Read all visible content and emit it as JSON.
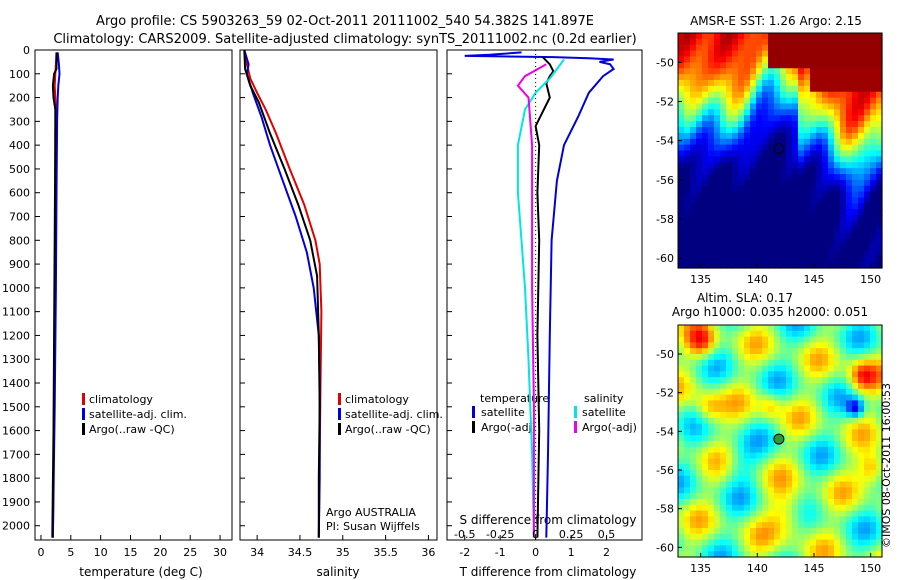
{
  "header": {
    "title_line1": "Argo profile: CS 5903263_59 02-Oct-2011 20111002_540 54.382S 141.897E",
    "title_line2": "Climatology: CARS2009. Satellite-adjusted climatology: synTS_20111002.nc (0.2d earlier)"
  },
  "colors": {
    "climatology": "#e00000",
    "satellite": "#0000dd",
    "argo": "#000000",
    "salinity_satellite": "#00e5e5",
    "salinity_argo": "#ee00ee"
  },
  "depth_axis": {
    "ticks": [
      0,
      100,
      200,
      300,
      400,
      500,
      600,
      700,
      800,
      900,
      1000,
      1100,
      1200,
      1300,
      1400,
      1500,
      1600,
      1700,
      1800,
      1900,
      2000
    ],
    "ylim": [
      0,
      2060
    ]
  },
  "chart_data": [
    {
      "type": "line",
      "xlabel": "temperature (deg C)",
      "xlim": [
        -1,
        32
      ],
      "xticks": [
        0,
        5,
        10,
        15,
        20,
        25,
        30
      ],
      "legend": [
        "climatology",
        "satellite-adj. clim.",
        "Argo(..raw -QC)"
      ],
      "series": [
        {
          "name": "climatology",
          "color": "climatology",
          "points": [
            [
              2.6,
              10
            ],
            [
              2.5,
              60
            ],
            [
              2.4,
              100
            ],
            [
              2.3,
              150
            ],
            [
              2.4,
              200
            ],
            [
              2.5,
              250
            ],
            [
              2.4,
              350
            ],
            [
              2.4,
              600
            ],
            [
              2.3,
              1000
            ],
            [
              2.2,
              1500
            ],
            [
              2.0,
              2050
            ]
          ]
        },
        {
          "name": "satellite-adj. clim.",
          "color": "satellite",
          "points": [
            [
              2.8,
              10
            ],
            [
              3.0,
              60
            ],
            [
              3.1,
              100
            ],
            [
              2.9,
              150
            ],
            [
              2.8,
              200
            ],
            [
              2.7,
              300
            ],
            [
              2.6,
              600
            ],
            [
              2.5,
              1000
            ],
            [
              2.3,
              1500
            ],
            [
              2.0,
              2050
            ]
          ]
        },
        {
          "name": "Argo(..raw -QC)",
          "color": "argo",
          "points": [
            [
              2.6,
              10
            ],
            [
              2.6,
              80
            ],
            [
              2.2,
              100
            ],
            [
              2.0,
              150
            ],
            [
              2.1,
              200
            ],
            [
              2.4,
              250
            ],
            [
              2.4,
              400
            ],
            [
              2.3,
              800
            ],
            [
              2.2,
              1200
            ],
            [
              2.1,
              1600
            ],
            [
              1.9,
              2050
            ]
          ]
        }
      ]
    },
    {
      "type": "line",
      "xlabel": "salinity",
      "xlim": [
        33.8,
        36.1
      ],
      "xticks": [
        34,
        34.5,
        35,
        35.5,
        36
      ],
      "xticklabels": [
        "34",
        "34.5",
        "35",
        "35.5",
        "36"
      ],
      "legend": [
        "climatology",
        "satellite-adj. clim.",
        "Argo(..raw -QC)"
      ],
      "annotations": [
        "Argo AUSTRALIA",
        "PI: Susan Wijffels"
      ],
      "series": [
        {
          "name": "climatology",
          "color": "climatology",
          "points": [
            [
              33.85,
              0
            ],
            [
              33.88,
              60
            ],
            [
              33.92,
              120
            ],
            [
              34.0,
              180
            ],
            [
              34.1,
              250
            ],
            [
              34.22,
              350
            ],
            [
              34.38,
              500
            ],
            [
              34.55,
              650
            ],
            [
              34.68,
              800
            ],
            [
              34.73,
              900
            ],
            [
              34.75,
              1100
            ],
            [
              34.74,
              1400
            ],
            [
              34.73,
              1700
            ],
            [
              34.72,
              2050
            ]
          ]
        },
        {
          "name": "satellite-adj. clim.",
          "color": "satellite",
          "points": [
            [
              33.85,
              0
            ],
            [
              33.9,
              60
            ],
            [
              33.88,
              100
            ],
            [
              33.95,
              180
            ],
            [
              34.05,
              280
            ],
            [
              34.15,
              400
            ],
            [
              34.3,
              550
            ],
            [
              34.45,
              700
            ],
            [
              34.58,
              850
            ],
            [
              34.66,
              1000
            ],
            [
              34.72,
              1200
            ],
            [
              34.73,
              1400
            ],
            [
              34.73,
              1800
            ],
            [
              34.72,
              2050
            ]
          ]
        },
        {
          "name": "Argo(..raw -QC)",
          "color": "argo",
          "points": [
            [
              33.85,
              0
            ],
            [
              33.86,
              80
            ],
            [
              33.92,
              150
            ],
            [
              34.02,
              220
            ],
            [
              34.15,
              350
            ],
            [
              34.32,
              500
            ],
            [
              34.48,
              650
            ],
            [
              34.62,
              800
            ],
            [
              34.7,
              950
            ],
            [
              34.72,
              1200
            ],
            [
              34.73,
              1500
            ],
            [
              34.72,
              1800
            ],
            [
              34.72,
              2050
            ]
          ]
        }
      ]
    },
    {
      "type": "line",
      "xlabel": "T difference from climatology",
      "x2label": "S difference from climatology",
      "xlim": [
        -2.5,
        3.0
      ],
      "xticks": [
        -2,
        -1,
        0,
        1,
        2
      ],
      "x2ticks": [
        -0.5,
        -0.25,
        0,
        0.25,
        0.5
      ],
      "x2ticklabels": [
        "-0.5",
        "-0.25",
        "0",
        "0.25",
        "0.5"
      ],
      "legend_temperature": {
        "title": "temperature",
        "items": [
          "satellite",
          "Argo(-adj)"
        ]
      },
      "legend_salinity": {
        "title": "salinity",
        "items": [
          "satellite",
          "Argo(-adj)"
        ]
      },
      "series": [
        {
          "name": "satellite",
          "group": "temperature",
          "color": "satellite",
          "points": [
            [
              -0.4,
              10
            ],
            [
              -1.3,
              20
            ],
            [
              -2.0,
              25
            ],
            [
              0.5,
              30
            ],
            [
              1.5,
              35
            ],
            [
              2.2,
              40
            ],
            [
              2.0,
              45
            ],
            [
              1.8,
              50
            ],
            [
              2.1,
              60
            ],
            [
              2.2,
              80
            ],
            [
              1.9,
              110
            ],
            [
              1.5,
              180
            ],
            [
              1.2,
              280
            ],
            [
              0.8,
              400
            ],
            [
              0.6,
              550
            ],
            [
              0.45,
              800
            ],
            [
              0.4,
              1200
            ],
            [
              0.35,
              1700
            ],
            [
              0.3,
              2050
            ]
          ]
        },
        {
          "name": "Argo(-adj)",
          "group": "temperature",
          "color": "argo",
          "points": [
            [
              0.2,
              30
            ],
            [
              0.4,
              60
            ],
            [
              0.5,
              90
            ],
            [
              0.4,
              110
            ],
            [
              0.3,
              140
            ],
            [
              0.4,
              200
            ],
            [
              0.2,
              260
            ],
            [
              0.0,
              320
            ],
            [
              0.1,
              400
            ],
            [
              0.05,
              600
            ],
            [
              0.1,
              800
            ],
            [
              0.05,
              1200
            ],
            [
              0.1,
              1600
            ],
            [
              0.05,
              2050
            ]
          ]
        },
        {
          "name": "satellite",
          "group": "salinity",
          "color": "salinity_satellite",
          "points": [
            [
              0.8,
              40
            ],
            [
              0.6,
              80
            ],
            [
              0.4,
              120
            ],
            [
              0.0,
              180
            ],
            [
              -0.3,
              250
            ],
            [
              -0.5,
              400
            ],
            [
              -0.5,
              600
            ],
            [
              -0.4,
              800
            ],
            [
              -0.3,
              1000
            ],
            [
              -0.2,
              1300
            ],
            [
              -0.1,
              1700
            ],
            [
              -0.05,
              2050
            ]
          ]
        },
        {
          "name": "Argo(-adj)",
          "group": "salinity",
          "color": "salinity_argo",
          "points": [
            [
              0.3,
              60
            ],
            [
              -0.3,
              110
            ],
            [
              -0.5,
              150
            ],
            [
              -0.2,
              200
            ],
            [
              -0.1,
              400
            ],
            [
              -0.1,
              700
            ],
            [
              -0.1,
              1000
            ],
            [
              -0.05,
              1500
            ],
            [
              -0.05,
              2050
            ]
          ]
        }
      ]
    },
    {
      "type": "heatmap",
      "title": "AMSR-E SST: 1.26 Argo: 2.15",
      "xlim": [
        133,
        151
      ],
      "ylim": [
        -60.5,
        -48.5
      ],
      "xticks": [
        135,
        140,
        145,
        150
      ],
      "yticks": [
        -50,
        -52,
        -54,
        -56,
        -58,
        -60
      ],
      "marker": [
        141.9,
        -54.4
      ]
    },
    {
      "type": "heatmap",
      "title_line1": "Altim. SLA: 0.17",
      "title_line2": "Argo h1000: 0.035 h2000: 0.051",
      "xlim": [
        133,
        151
      ],
      "ylim": [
        -60.5,
        -48.5
      ],
      "xticks": [
        135,
        140,
        145,
        150
      ],
      "yticks": [
        -50,
        -52,
        -54,
        -56,
        -58,
        -60
      ],
      "marker": [
        141.9,
        -54.4
      ]
    }
  ],
  "watermark": "©IMOS 08-Oct-2011 16:00:53"
}
